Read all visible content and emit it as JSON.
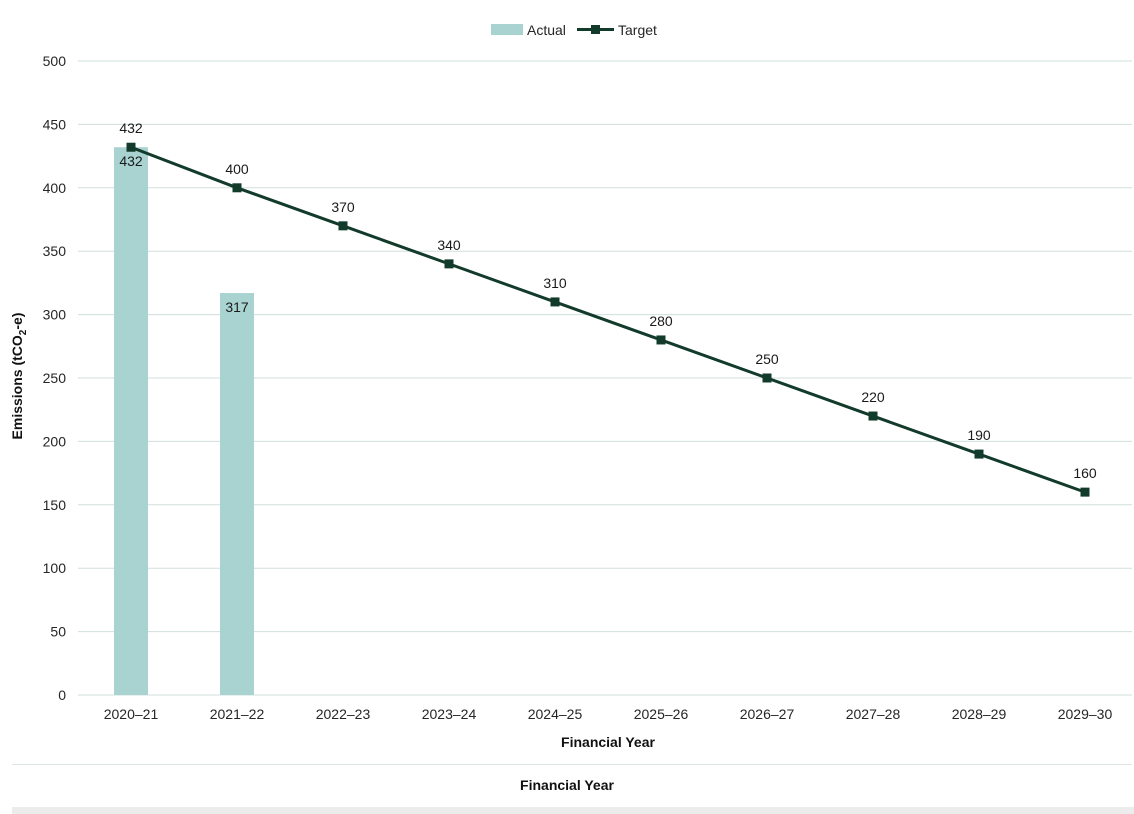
{
  "chart_data": {
    "type": "bar+line",
    "categories": [
      "2020–21",
      "2021–22",
      "2022–23",
      "2023–24",
      "2024–25",
      "2025–26",
      "2026–27",
      "2027–28",
      "2028–29",
      "2029–30"
    ],
    "series": [
      {
        "name": "Actual",
        "type": "bar",
        "color": "#a8d3d1",
        "values": [
          432,
          317,
          null,
          null,
          null,
          null,
          null,
          null,
          null,
          null
        ]
      },
      {
        "name": "Target",
        "type": "line",
        "color": "#123b2b",
        "marker": "square",
        "values": [
          432,
          400,
          370,
          340,
          310,
          280,
          250,
          220,
          190,
          160
        ]
      }
    ],
    "xlabel": "Financial Year",
    "ylabel_main": "Emissions (tCO",
    "ylabel_sub": "2",
    "ylabel_end": "-e)",
    "ylim": [
      0,
      500
    ],
    "yticks": [
      0,
      50,
      100,
      150,
      200,
      250,
      300,
      350,
      400,
      450,
      500
    ],
    "grid": true,
    "legend_position": "top-center",
    "gridline_color": "#cfe0de"
  },
  "footer": {
    "title": "Financial Year"
  }
}
